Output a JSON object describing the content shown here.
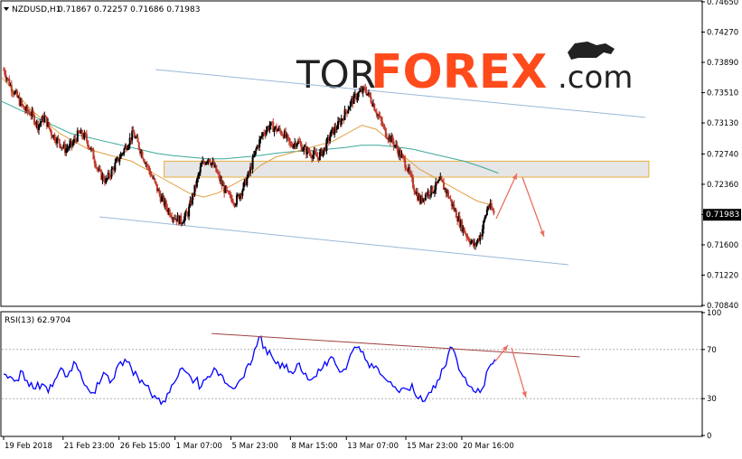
{
  "main_panel": {
    "symbol_label": "NZDUSD,H1",
    "ohlc_values": "0.71867 0.72257 0.71686 0.71983",
    "current_price_label": "0.71983",
    "price_ticks": [
      "0.74650",
      "0.74270",
      "0.73890",
      "0.73510",
      "0.73130",
      "0.72740",
      "0.72360",
      "0.71980",
      "0.71600",
      "0.71220",
      "0.70840"
    ]
  },
  "rsi_panel": {
    "label": "RSI(13) 62.9704",
    "levels": [
      "100",
      "70",
      "30",
      "0"
    ]
  },
  "time_axis": {
    "labels": [
      "19 Feb 2018",
      "21 Feb 23:00",
      "26 Feb 15:00",
      "1 Mar 07:00",
      "5 Mar 23:00",
      "8 Mar 15:00",
      "13 Mar 07:00",
      "15 Mar 23:00",
      "20 Mar 16:00"
    ]
  },
  "logo": {
    "part1": "TOR",
    "part2": "FOREX",
    "part3": ".com"
  },
  "colors": {
    "bull_candle": "#000000",
    "bear_candle": "#c0392b",
    "ma_fast": "#e0a040",
    "ma_slow": "#3aa89a",
    "channel_line": "#9ab8d8",
    "zone_fill": "#e0e0e0",
    "zone_border": "#e8b040",
    "rsi_line": "#0000ff",
    "rsi_trend": "#a04040",
    "arrow": "#e87060",
    "logo_dark": "#222222",
    "logo_accent": "#ff4a1c"
  },
  "chart_data": {
    "type": "candlestick",
    "title": "NZDUSD,H1",
    "x": [
      "19 Feb 2018",
      "21 Feb 23:00",
      "26 Feb 15:00",
      "1 Mar 07:00",
      "5 Mar 23:00",
      "8 Mar 15:00",
      "13 Mar 07:00",
      "15 Mar 23:00",
      "20 Mar 16:00"
    ],
    "price_path": [
      0.738,
      0.736,
      0.7345,
      0.733,
      0.7325,
      0.731,
      0.732,
      0.73,
      0.729,
      0.728,
      0.7285,
      0.73,
      0.7295,
      0.7275,
      0.725,
      0.724,
      0.7255,
      0.727,
      0.7285,
      0.73,
      0.728,
      0.726,
      0.724,
      0.722,
      0.7205,
      0.7195,
      0.719,
      0.72,
      0.723,
      0.726,
      0.727,
      0.7255,
      0.7235,
      0.722,
      0.7215,
      0.723,
      0.725,
      0.728,
      0.73,
      0.731,
      0.7305,
      0.73,
      0.7285,
      0.729,
      0.728,
      0.7275,
      0.727,
      0.728,
      0.73,
      0.731,
      0.7325,
      0.734,
      0.735,
      0.7355,
      0.734,
      0.732,
      0.73,
      0.729,
      0.7275,
      0.726,
      0.7235,
      0.7215,
      0.7225,
      0.723,
      0.724,
      0.7225,
      0.7205,
      0.7185,
      0.717,
      0.7158,
      0.7175,
      0.721,
      0.7198
    ],
    "ma_fast": [
      0.737,
      0.735,
      0.733,
      0.7315,
      0.73,
      0.729,
      0.728,
      0.7275,
      0.727,
      0.7265,
      0.7255,
      0.7245,
      0.7235,
      0.7225,
      0.722,
      0.7225,
      0.7235,
      0.7245,
      0.726,
      0.727,
      0.7275,
      0.728,
      0.7285,
      0.729,
      0.73,
      0.731,
      0.7305,
      0.729,
      0.727,
      0.7255,
      0.7245,
      0.7235,
      0.7225,
      0.7215,
      0.721
    ],
    "ma_slow": [
      0.734,
      0.733,
      0.732,
      0.731,
      0.73,
      0.7295,
      0.729,
      0.7285,
      0.728,
      0.7275,
      0.7272,
      0.727,
      0.7268,
      0.7268,
      0.727,
      0.7272,
      0.7275,
      0.7277,
      0.7278,
      0.728,
      0.7282,
      0.7285,
      0.7285,
      0.7283,
      0.728,
      0.7275,
      0.727,
      0.7265,
      0.7258,
      0.725
    ],
    "channel_upper": [
      [
        0.22,
        0.738
      ],
      [
        0.92,
        0.732
      ]
    ],
    "channel_lower": [
      [
        0.14,
        0.7195
      ],
      [
        0.81,
        0.7135
      ]
    ],
    "resistance_zone": [
      0.7245,
      0.7265
    ],
    "rsi": [
      50,
      48,
      45,
      52,
      40,
      38,
      42,
      35,
      45,
      55,
      48,
      60,
      52,
      40,
      35,
      42,
      50,
      45,
      58,
      62,
      55,
      48,
      42,
      35,
      30,
      28,
      35,
      45,
      55,
      50,
      45,
      40,
      48,
      55,
      50,
      42,
      38,
      45,
      55,
      62,
      80,
      72,
      65,
      60,
      55,
      52,
      58,
      50,
      45,
      48,
      55,
      62,
      58,
      52,
      60,
      72,
      68,
      60,
      55,
      50,
      45,
      40,
      35,
      38,
      42,
      30,
      28,
      35,
      45,
      55,
      72,
      62,
      48,
      40,
      35,
      38,
      55,
      62
    ],
    "rsi_trend": [
      [
        0.3,
        83
      ],
      [
        0.79,
        64
      ]
    ],
    "ylim": [
      0.7084,
      0.7465
    ],
    "rsi_ylim": [
      0,
      100
    ]
  }
}
